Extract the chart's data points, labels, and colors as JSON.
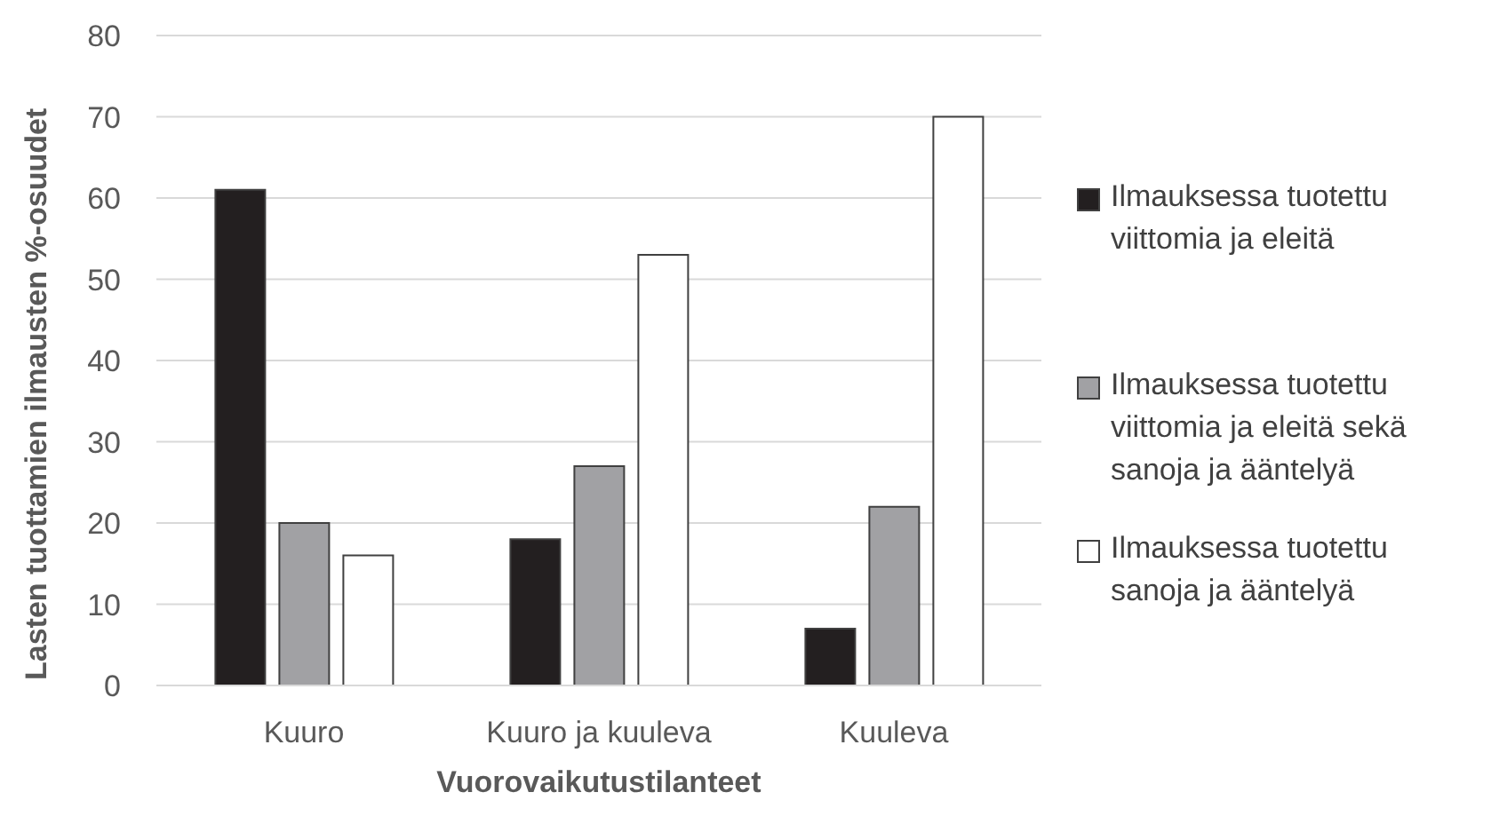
{
  "chart_data": {
    "type": "bar",
    "xlabel": "Vuorovaikutustilanteet",
    "ylabel": "Lasten tuottamien ilmausten %-osuudet",
    "categories": [
      "Kuuro",
      "Kuuro ja kuuleva",
      "Kuuleva"
    ],
    "series": [
      {
        "name": "Ilmauksessa tuotettu viittomia ja eleitä",
        "color": "#231f20",
        "values": [
          61,
          18,
          7
        ]
      },
      {
        "name": "Ilmauksessa tuotettu viittomia ja eleitä sekä sanoja ja ääntelyä",
        "color": "#a1a1a4",
        "values": [
          20,
          27,
          22
        ]
      },
      {
        "name": "Ilmauksessa tuotettu sanoja ja ääntelyä",
        "color": "#ffffff",
        "values": [
          16,
          53,
          70
        ]
      }
    ],
    "ylim": [
      0,
      80
    ],
    "yticks": [
      0,
      10,
      20,
      30,
      40,
      50,
      60,
      70,
      80
    ],
    "grid": "y",
    "legend": "right"
  }
}
